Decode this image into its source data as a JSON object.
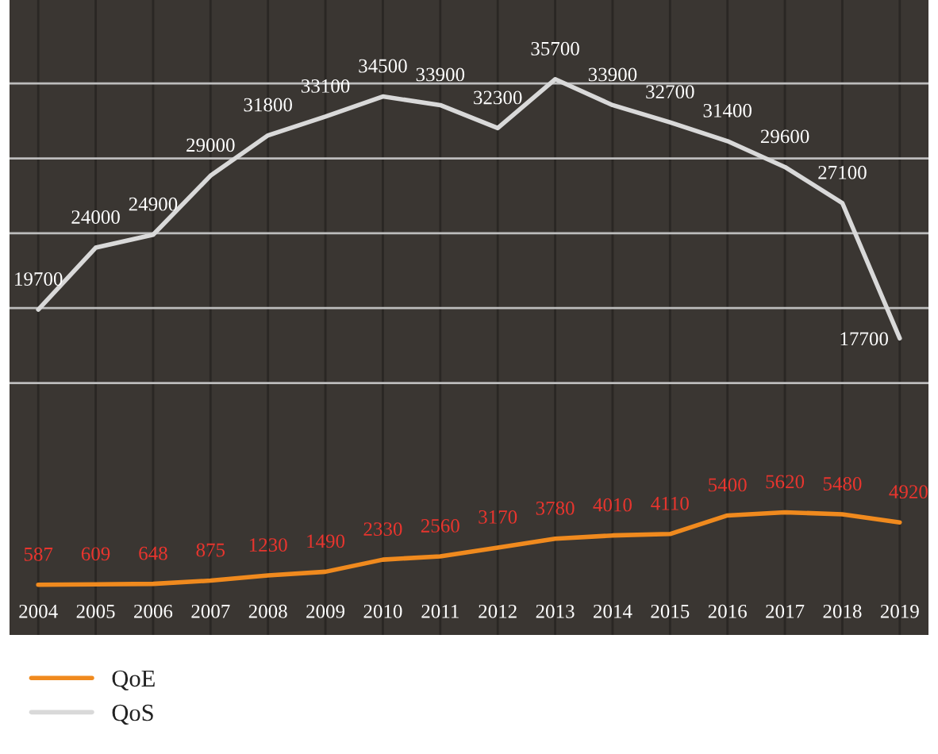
{
  "chart_data": {
    "type": "line",
    "categories": [
      "2004",
      "2005",
      "2006",
      "2007",
      "2008",
      "2009",
      "2010",
      "2011",
      "2012",
      "2013",
      "2014",
      "2015",
      "2016",
      "2017",
      "2018",
      "2019"
    ],
    "series": [
      {
        "name": "QoE",
        "color": "#f08a1e",
        "values": [
          587,
          609,
          648,
          875,
          1230,
          1490,
          2330,
          2560,
          3170,
          3780,
          4010,
          4110,
          5400,
          5620,
          5480,
          4920
        ]
      },
      {
        "name": "QoS",
        "color": "#d9d9d9",
        "values": [
          19700,
          24000,
          24900,
          29000,
          31800,
          33100,
          34500,
          33900,
          32300,
          35700,
          33900,
          32700,
          31400,
          29600,
          27100,
          17700
        ]
      }
    ],
    "ylim": [
      -2900,
      41200
    ],
    "yticks": [
      {
        "value": 14600,
        "label": null
      },
      {
        "value": 19800,
        "label": null
      },
      {
        "value": 25000,
        "label": null
      },
      {
        "value": 30200,
        "label": null
      },
      {
        "value": 35400,
        "label": null
      }
    ],
    "tick_labels": "x",
    "grid": true,
    "data_labels": true,
    "legend": "bottom left",
    "marker": "none",
    "line_style": "solid"
  }
}
